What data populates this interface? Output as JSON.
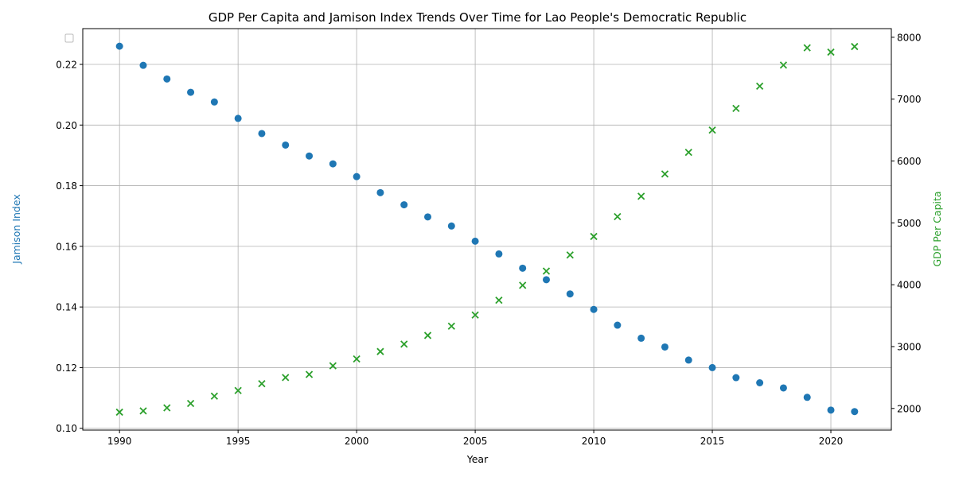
{
  "chart_data": {
    "type": "scatter",
    "title": "GDP Per Capita and Jamison Index Trends Over Time for Lao People's Democratic Republic",
    "xlabel": "Year",
    "ylabel_left": "Jamison Index",
    "ylabel_right": "GDP Per Capita",
    "xlim": [
      1988.45,
      2022.55
    ],
    "ylim_left": [
      0.0994,
      0.2318
    ],
    "ylim_right": [
      1650,
      8140
    ],
    "x_ticks": [
      1990,
      1995,
      2000,
      2005,
      2010,
      2015,
      2020
    ],
    "y_ticks_left": [
      0.1,
      0.12,
      0.14,
      0.16,
      0.18,
      0.2,
      0.22
    ],
    "y_ticks_right": [
      2000,
      3000,
      4000,
      5000,
      6000,
      7000,
      8000
    ],
    "grid": true,
    "legend": "top-left (empty)",
    "years": [
      1990,
      1991,
      1992,
      1993,
      1994,
      1995,
      1996,
      1997,
      1998,
      1999,
      2000,
      2001,
      2002,
      2003,
      2004,
      2005,
      2006,
      2007,
      2008,
      2009,
      2010,
      2011,
      2012,
      2013,
      2014,
      2015,
      2016,
      2017,
      2018,
      2019,
      2020,
      2021
    ],
    "series": [
      {
        "axis": "left",
        "marker": "circle",
        "color": "#1f77b4",
        "values": [
          0.226,
          0.2197,
          0.2152,
          0.2108,
          0.2076,
          0.2022,
          0.1972,
          0.1934,
          0.1898,
          0.1872,
          0.183,
          0.1777,
          0.1737,
          0.1697,
          0.1667,
          0.1617,
          0.1575,
          0.1528,
          0.149,
          0.1443,
          0.1392,
          0.134,
          0.1297,
          0.1268,
          0.1225,
          0.12,
          0.1167,
          0.115,
          0.1133,
          0.1102,
          0.106,
          0.1055
        ]
      },
      {
        "axis": "right",
        "marker": "x",
        "color": "#2ca02c",
        "values": [
          1940,
          1960,
          2010,
          2080,
          2200,
          2290,
          2400,
          2500,
          2550,
          2690,
          2800,
          2920,
          3040,
          3180,
          3330,
          3510,
          3750,
          3990,
          4220,
          4480,
          4780,
          5100,
          5430,
          5790,
          6140,
          6500,
          6850,
          7210,
          7550,
          7830,
          7760,
          7850
        ]
      }
    ]
  }
}
